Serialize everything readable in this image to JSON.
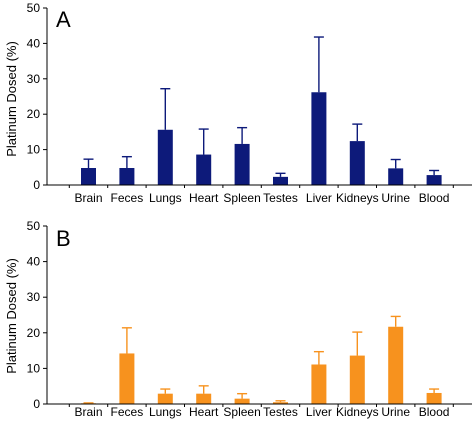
{
  "chart_data": [
    {
      "type": "bar",
      "panel_label": "A",
      "ylabel": "Platinum Dosed (%)",
      "ylim": [
        0,
        50
      ],
      "yticks": [
        0,
        10,
        20,
        30,
        40,
        50
      ],
      "categories": [
        "Brain",
        "Feces",
        "Lungs",
        "Heart",
        "Spleen",
        "Testes",
        "Liver",
        "Kidneys",
        "Urine",
        "Blood"
      ],
      "values": [
        4.8,
        4.8,
        15.6,
        8.6,
        11.6,
        2.3,
        26.2,
        12.4,
        4.7,
        2.8
      ],
      "error_upper": [
        7.3,
        8.0,
        27.2,
        15.8,
        16.2,
        3.3,
        41.8,
        17.2,
        7.2,
        4.1
      ],
      "bar_color": "#0d1a7a",
      "grid": false
    },
    {
      "type": "bar",
      "panel_label": "B",
      "ylabel": "Platinum Dosed (%)",
      "ylim": [
        0,
        50
      ],
      "yticks": [
        0,
        10,
        20,
        30,
        40,
        50
      ],
      "categories": [
        "Brain",
        "Feces",
        "Lungs",
        "Heart",
        "Spleen",
        "Testes",
        "Liver",
        "Kidneys",
        "Urine",
        "Blood"
      ],
      "values": [
        0.2,
        14.2,
        2.9,
        2.9,
        1.5,
        0.5,
        11.1,
        13.6,
        21.7,
        3.1
      ],
      "error_upper": [
        0.3,
        21.4,
        4.2,
        5.1,
        2.9,
        0.9,
        14.7,
        20.2,
        24.6,
        4.2
      ],
      "bar_color": "#f7921e",
      "grid": false
    }
  ]
}
